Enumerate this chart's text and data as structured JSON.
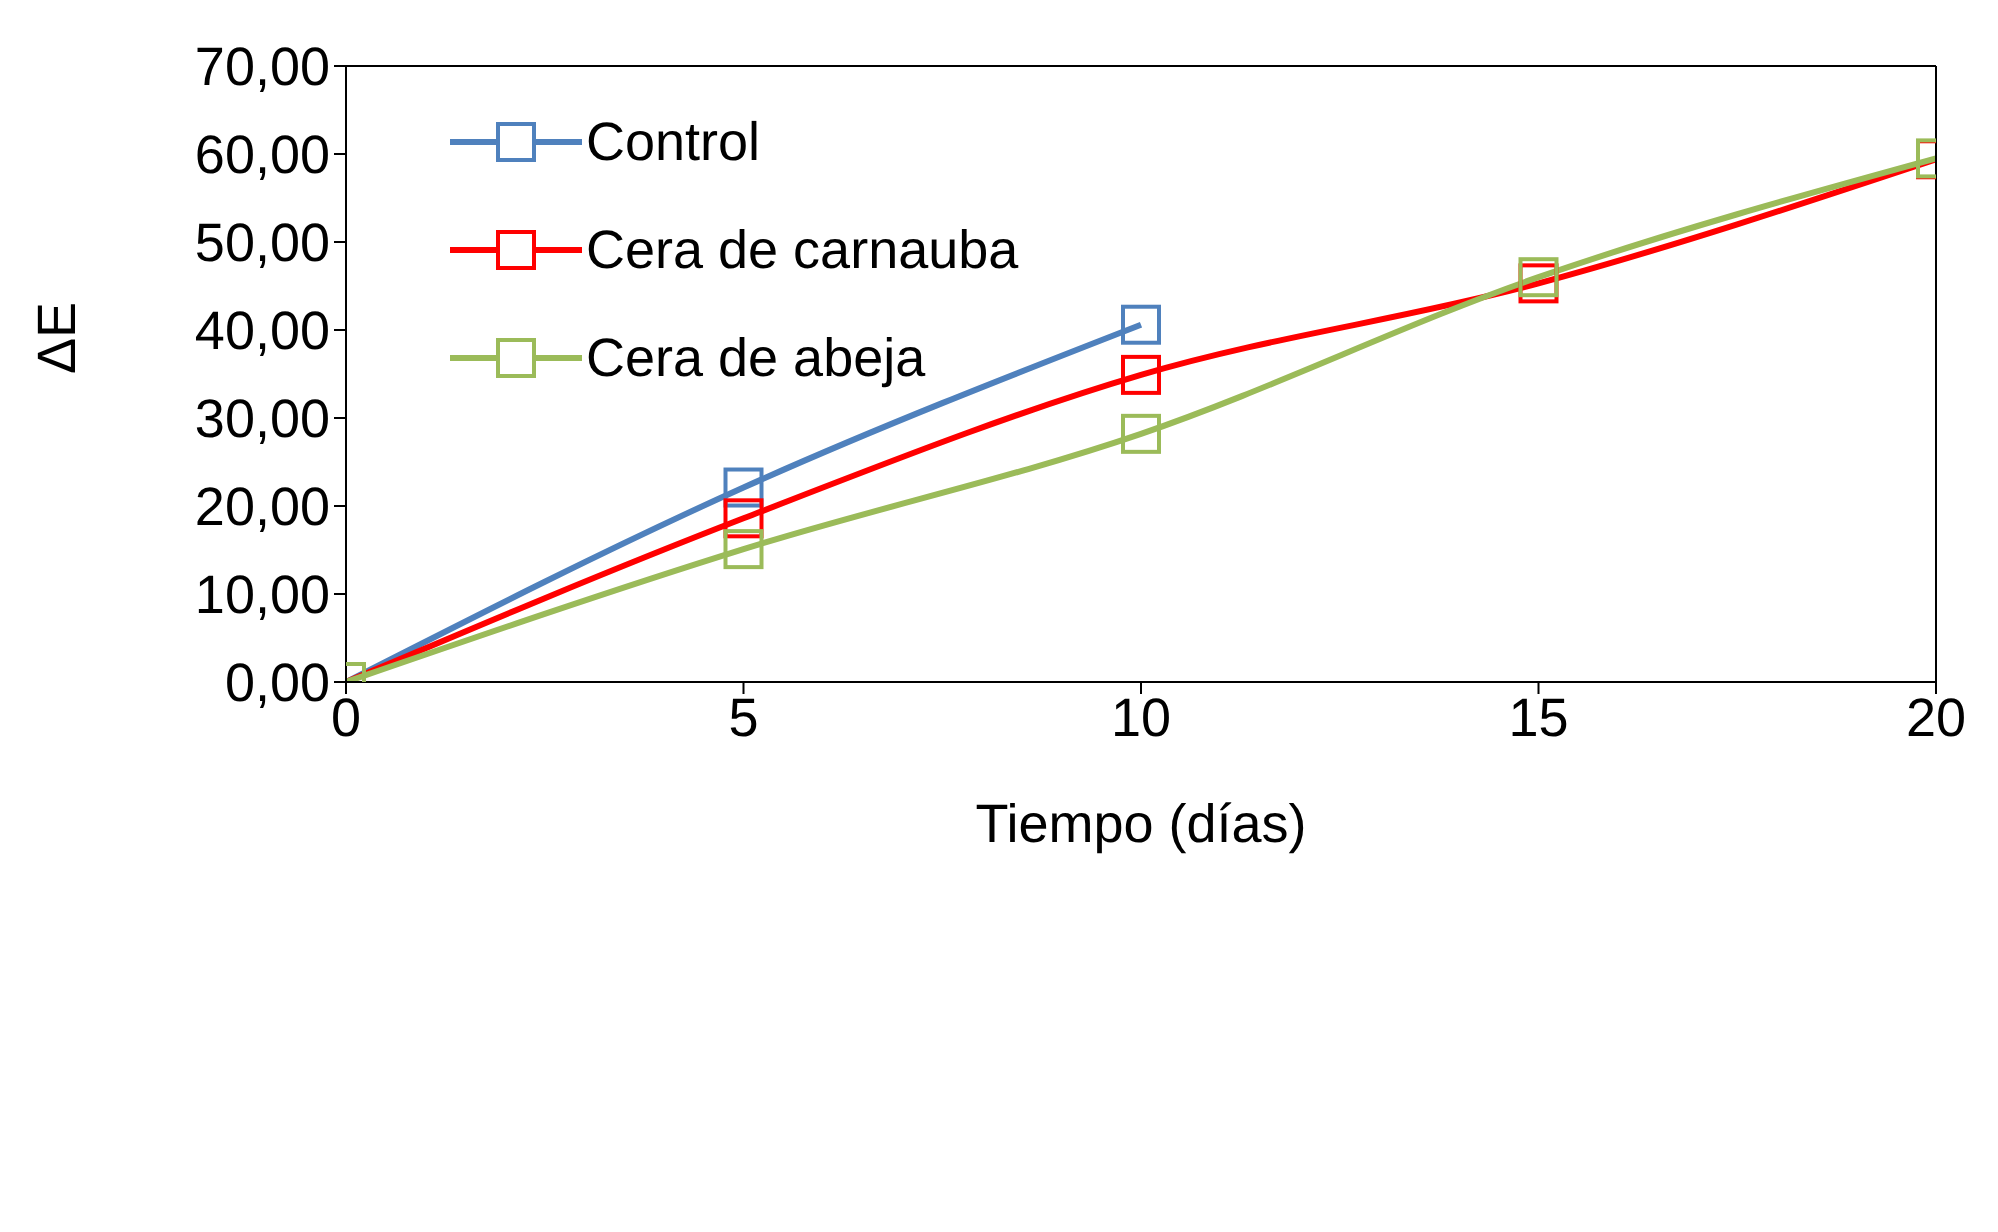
{
  "chart_data": {
    "type": "line",
    "xlabel": "Tiempo (días)",
    "ylabel": "ΔE",
    "x": [
      0,
      5,
      10,
      15,
      20
    ],
    "series": [
      {
        "name": "Control",
        "color": "#4f81bd",
        "values": [
          0,
          22.1,
          40.6,
          null,
          null
        ]
      },
      {
        "name": "Cera de carnauba",
        "color": "#ff0000",
        "values": [
          0,
          18.6,
          34.9,
          45.3,
          59.4
        ]
      },
      {
        "name": "Cera de abeja",
        "color": "#9bbb59",
        "values": [
          0,
          15.1,
          28.2,
          46.0,
          59.5
        ]
      }
    ],
    "xlim": [
      0,
      20
    ],
    "xticks": [
      0,
      5,
      10,
      15,
      20
    ],
    "ylim": [
      0,
      70
    ],
    "yticks": [
      {
        "value": 0,
        "label": "0,00"
      },
      {
        "value": 10,
        "label": "10,00"
      },
      {
        "value": 20,
        "label": "20,00"
      },
      {
        "value": 30,
        "label": "30,00"
      },
      {
        "value": 40,
        "label": "40,00"
      },
      {
        "value": 50,
        "label": "50,00"
      },
      {
        "value": 60,
        "label": "60,00"
      },
      {
        "value": 70,
        "label": "70,00"
      }
    ],
    "grid": false,
    "legend": "top left",
    "marker": "square",
    "line_style": "solid"
  }
}
